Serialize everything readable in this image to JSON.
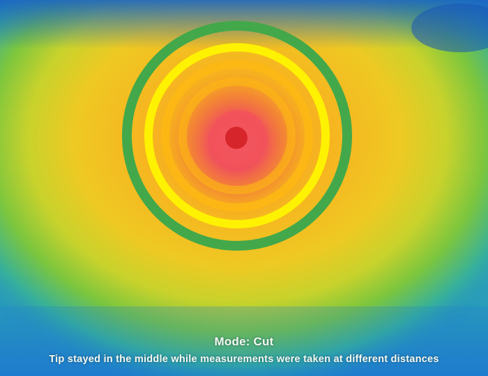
{
  "caption": {
    "mode": "Mode: Cut",
    "note": "Tip stayed in the middle while measurements were taken at different distances"
  },
  "rings": {
    "outer_color": "#43a84a",
    "middle_color": "#fff200",
    "inner_color": "#fdb913",
    "hotspot_color": "#f2545b",
    "center_dot_color": "#d7262b"
  },
  "thermal_palette": [
    "#1a6fc8",
    "#2aa8c0",
    "#8ccc3a",
    "#f0d21e",
    "#f6a31e",
    "#f04a5a"
  ]
}
